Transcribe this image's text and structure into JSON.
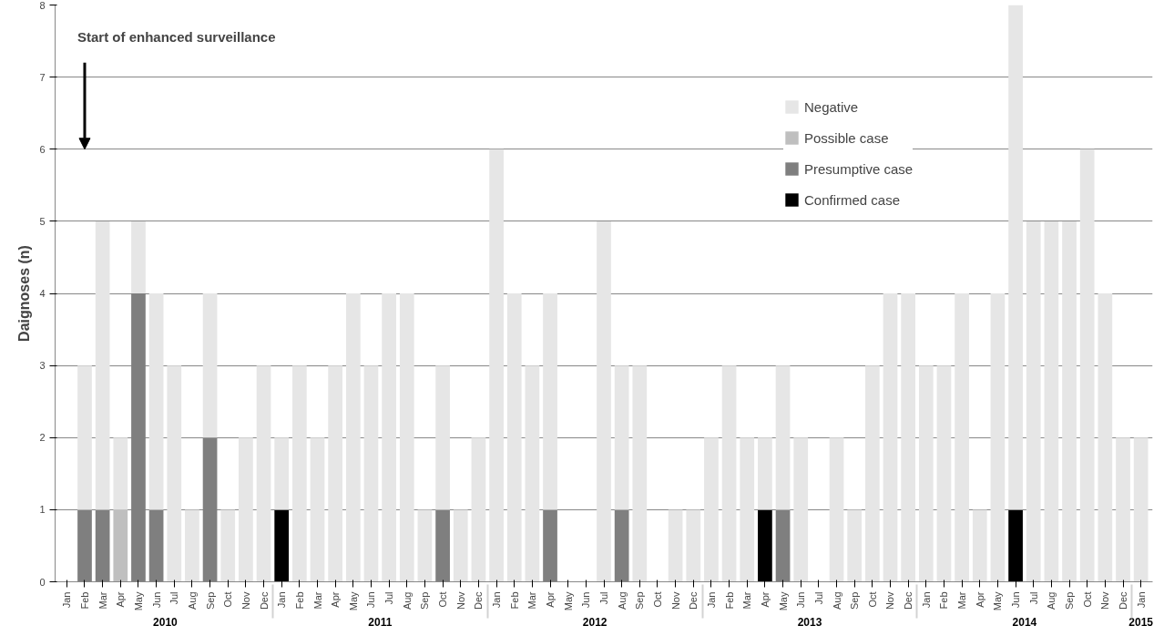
{
  "chart_data": {
    "type": "bar",
    "stacked": true,
    "ylabel": "Daignoses (n)",
    "categories": [
      "Jan",
      "Feb",
      "Mar",
      "Apr",
      "May",
      "Jun",
      "Jul",
      "Aug",
      "Sep",
      "Oct",
      "Nov",
      "Dec",
      "Jan",
      "Feb",
      "Mar",
      "Apr",
      "May",
      "Jun",
      "Jul",
      "Aug",
      "Sep",
      "Oct",
      "Nov",
      "Dec",
      "Jan",
      "Feb",
      "Mar",
      "Apr",
      "May",
      "Jun",
      "Jul",
      "Aug",
      "Sep",
      "Oct",
      "Nov",
      "Dec",
      "Jan",
      "Feb",
      "Mar",
      "Apr",
      "May",
      "Jun",
      "Jul",
      "Aug",
      "Sep",
      "Oct",
      "Nov",
      "Dec",
      "Jan",
      "Feb",
      "Mar",
      "Apr",
      "May",
      "Jun",
      "Jul",
      "Aug",
      "Sep",
      "Oct",
      "Nov",
      "Dec",
      "Jan"
    ],
    "series": [
      {
        "name": "Confirmed case",
        "color": "#000000",
        "values": [
          0,
          0,
          0,
          0,
          0,
          0,
          0,
          0,
          0,
          0,
          0,
          0,
          1,
          0,
          0,
          0,
          0,
          0,
          0,
          0,
          0,
          0,
          0,
          0,
          0,
          0,
          0,
          0,
          0,
          0,
          0,
          0,
          0,
          0,
          0,
          0,
          0,
          0,
          0,
          1,
          0,
          0,
          0,
          0,
          0,
          0,
          0,
          0,
          0,
          0,
          0,
          0,
          0,
          1,
          0,
          0,
          0,
          0,
          0,
          0,
          0
        ]
      },
      {
        "name": "Presumptive case",
        "color": "#7f7f7f",
        "values": [
          0,
          1,
          1,
          0,
          4,
          1,
          0,
          0,
          2,
          0,
          0,
          0,
          0,
          0,
          0,
          0,
          0,
          0,
          0,
          0,
          0,
          1,
          0,
          0,
          0,
          0,
          0,
          1,
          0,
          0,
          0,
          1,
          0,
          0,
          0,
          0,
          0,
          0,
          0,
          0,
          1,
          0,
          0,
          0,
          0,
          0,
          0,
          0,
          0,
          0,
          0,
          0,
          0,
          0,
          0,
          0,
          0,
          0,
          0,
          0,
          0
        ]
      },
      {
        "name": "Possible case",
        "color": "#bfbfbf",
        "values": [
          0,
          0,
          0,
          1,
          0,
          0,
          0,
          0,
          0,
          0,
          0,
          0,
          0,
          0,
          0,
          0,
          0,
          0,
          0,
          0,
          0,
          0,
          0,
          0,
          0,
          0,
          0,
          0,
          0,
          0,
          0,
          0,
          0,
          0,
          0,
          0,
          0,
          0,
          0,
          0,
          0,
          0,
          0,
          0,
          0,
          0,
          0,
          0,
          0,
          0,
          0,
          0,
          0,
          0,
          0,
          0,
          0,
          0,
          0,
          0,
          0
        ]
      },
      {
        "name": "Negative",
        "color": "#e6e6e6",
        "values": [
          0,
          2,
          4,
          1,
          1,
          3,
          3,
          1,
          2,
          1,
          2,
          3,
          1,
          3,
          2,
          3,
          4,
          3,
          4,
          4,
          1,
          2,
          1,
          2,
          6,
          4,
          3,
          3,
          0,
          0,
          5,
          2,
          3,
          0,
          1,
          1,
          2,
          3,
          2,
          1,
          2,
          2,
          0,
          2,
          1,
          3,
          4,
          4,
          3,
          3,
          4,
          1,
          4,
          7,
          5,
          5,
          5,
          6,
          4,
          2,
          2
        ]
      }
    ],
    "ylim": [
      0,
      8
    ],
    "yticks": [
      0,
      1,
      2,
      3,
      4,
      5,
      6,
      7,
      8
    ],
    "grid": "y",
    "legend": "top right",
    "annotations": [
      "Start of enhanced surveillance",
      "2010",
      "2011",
      "2012",
      "2013",
      "2014",
      "2015"
    ]
  }
}
